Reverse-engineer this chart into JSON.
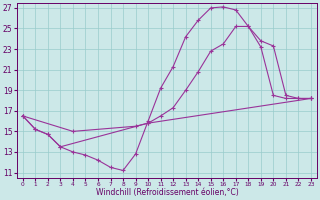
{
  "xlabel": "Windchill (Refroidissement éolien,°C)",
  "bg_color": "#cce8e8",
  "line_color": "#993399",
  "grid_color": "#99cccc",
  "xlim": [
    -0.5,
    23.5
  ],
  "ylim": [
    10.5,
    27.5
  ],
  "yticks": [
    11,
    13,
    15,
    17,
    19,
    21,
    23,
    25,
    27
  ],
  "xticks": [
    0,
    1,
    2,
    3,
    4,
    5,
    6,
    7,
    8,
    9,
    10,
    11,
    12,
    13,
    14,
    15,
    16,
    17,
    18,
    19,
    20,
    21,
    22,
    23
  ],
  "line1_x": [
    0,
    1,
    2,
    3,
    4,
    5,
    6,
    7,
    8,
    9,
    10,
    11,
    12,
    13,
    14,
    15,
    16,
    17,
    18,
    19,
    20,
    21,
    22,
    23
  ],
  "line1_y": [
    16.5,
    15.2,
    14.7,
    13.5,
    13.0,
    12.7,
    12.2,
    11.5,
    11.2,
    12.8,
    16.0,
    19.2,
    21.3,
    24.2,
    25.8,
    27.0,
    27.1,
    26.8,
    25.2,
    23.2,
    18.5,
    18.2,
    18.2,
    18.2
  ],
  "line2_x": [
    0,
    1,
    2,
    3,
    10,
    11,
    12,
    13,
    14,
    15,
    16,
    17,
    18,
    19,
    20,
    21,
    22,
    23
  ],
  "line2_y": [
    16.5,
    15.2,
    14.7,
    13.5,
    15.8,
    16.5,
    17.3,
    19.0,
    20.8,
    22.8,
    23.5,
    25.2,
    25.2,
    23.8,
    23.3,
    18.5,
    18.2,
    18.2
  ],
  "line3_x": [
    0,
    4,
    9,
    10,
    23
  ],
  "line3_y": [
    16.5,
    15.0,
    15.5,
    15.8,
    18.2
  ]
}
